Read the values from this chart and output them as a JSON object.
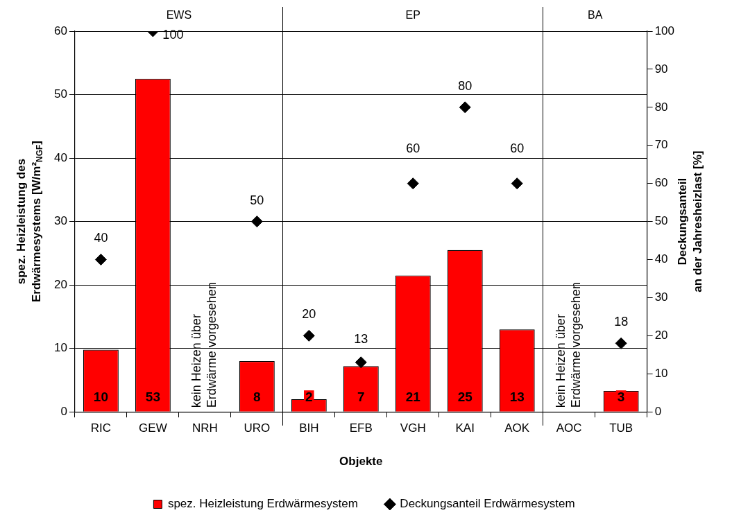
{
  "chart_data": {
    "type": "bar",
    "categories": [
      "RIC",
      "GEW",
      "NRH",
      "URO",
      "BIH",
      "EFB",
      "VGH",
      "KAI",
      "AOK",
      "AOC",
      "TUB"
    ],
    "series": [
      {
        "name": "spez. Heizleistung Erdwärmesystem",
        "color": "#ff0000",
        "values": [
          9.8,
          52.5,
          null,
          8,
          2,
          7.2,
          21.5,
          25.5,
          13,
          null,
          3.3
        ],
        "value_labels": [
          "10",
          "53",
          null,
          "8",
          "2",
          "7",
          "21",
          "25",
          "13",
          null,
          "3"
        ]
      },
      {
        "name": "Deckungsanteil Erdwärmesystem",
        "type": "scatter",
        "axis": "y2",
        "color": "#000000",
        "marker": "diamond",
        "values": [
          40,
          100,
          null,
          50,
          20,
          13,
          60,
          80,
          60,
          null,
          18
        ],
        "value_labels": [
          "40",
          "100",
          null,
          "50",
          "20",
          "13",
          "60",
          "80",
          "60",
          null,
          "18"
        ]
      }
    ],
    "xlabel": "Objekte",
    "ylabel": "spez. Heizleistung des\nErdwärmesystems [W/m²$_{NGF}$]",
    "y2label": "Deckungsanteil\nan der Jahresheizlast [%]",
    "ylim": [
      0,
      60
    ],
    "yticks": [
      0,
      10,
      20,
      30,
      40,
      50,
      60
    ],
    "y2lim": [
      0,
      100
    ],
    "y2ticks": [
      0,
      10,
      20,
      30,
      40,
      50,
      60,
      70,
      80,
      90,
      100
    ],
    "grid": "y",
    "legend": "bottom",
    "annotations": [
      "EWS",
      "EP",
      "BA",
      "kein Heizen über\nErdwärme vorgesehen",
      "kein Heizen über\nErdwärme vorgesehen"
    ]
  }
}
